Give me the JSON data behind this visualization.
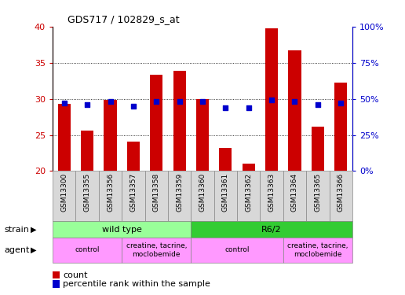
{
  "title": "GDS717 / 102829_s_at",
  "samples": [
    "GSM13300",
    "GSM13355",
    "GSM13356",
    "GSM13357",
    "GSM13358",
    "GSM13359",
    "GSM13360",
    "GSM13361",
    "GSM13362",
    "GSM13363",
    "GSM13364",
    "GSM13365",
    "GSM13366"
  ],
  "counts": [
    29.3,
    25.6,
    29.8,
    24.1,
    33.3,
    33.9,
    30.0,
    23.2,
    21.0,
    39.8,
    36.7,
    26.1,
    32.2
  ],
  "percentiles": [
    47,
    46,
    48,
    45,
    48,
    48,
    48,
    44,
    44,
    49,
    48,
    46,
    47
  ],
  "ylim_left": [
    20,
    40
  ],
  "ylim_right": [
    0,
    100
  ],
  "yticks_left": [
    20,
    25,
    30,
    35,
    40
  ],
  "yticks_right": [
    0,
    25,
    50,
    75,
    100
  ],
  "bar_color": "#cc0000",
  "dot_color": "#0000cc",
  "strain_labels": [
    {
      "text": "wild type",
      "start": 0,
      "end": 5,
      "color": "#99ff99"
    },
    {
      "text": "R6/2",
      "start": 6,
      "end": 12,
      "color": "#33cc33"
    }
  ],
  "agent_labels": [
    {
      "text": "control",
      "start": 0,
      "end": 2,
      "color": "#ff99ff"
    },
    {
      "text": "creatine, tacrine,\nmoclobemide",
      "start": 3,
      "end": 5,
      "color": "#ff99ff"
    },
    {
      "text": "control",
      "start": 6,
      "end": 9,
      "color": "#ff99ff"
    },
    {
      "text": "creatine, tacrine,\nmoclobemide",
      "start": 10,
      "end": 12,
      "color": "#ff99ff"
    }
  ],
  "axis_color_left": "#cc0000",
  "axis_color_right": "#0000cc",
  "figsize": [
    5.16,
    3.75
  ],
  "dpi": 100
}
